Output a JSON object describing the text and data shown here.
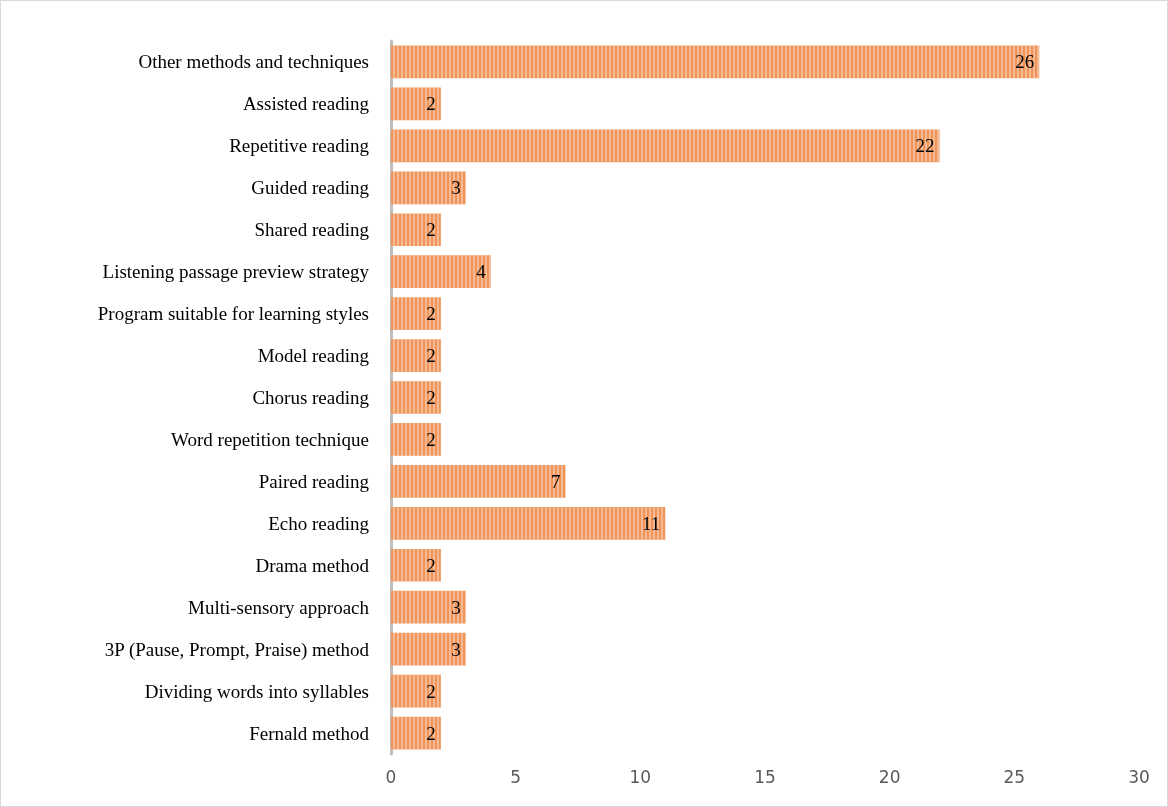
{
  "chart_data": {
    "type": "bar",
    "orientation": "horizontal",
    "categories": [
      "Other methods and techniques",
      "Assisted reading",
      "Repetitive reading",
      "Guided reading",
      "Shared reading",
      "Listening passage preview strategy",
      "Program suitable for learning styles",
      "Model reading",
      "Chorus reading",
      "Word repetition technique",
      "Paired reading",
      "Echo reading",
      "Drama method",
      "Multi-sensory approach",
      "3P (Pause, Prompt, Praise) method",
      "Dividing words into syllables",
      "Fernald method"
    ],
    "values": [
      26,
      2,
      22,
      3,
      2,
      4,
      2,
      2,
      2,
      2,
      7,
      11,
      2,
      3,
      3,
      2,
      2
    ],
    "color": "#f0955a",
    "xlim": [
      0,
      30
    ],
    "xticks": [
      0,
      5,
      10,
      15,
      20,
      25,
      30
    ],
    "grid": false,
    "data_labels": true
  }
}
